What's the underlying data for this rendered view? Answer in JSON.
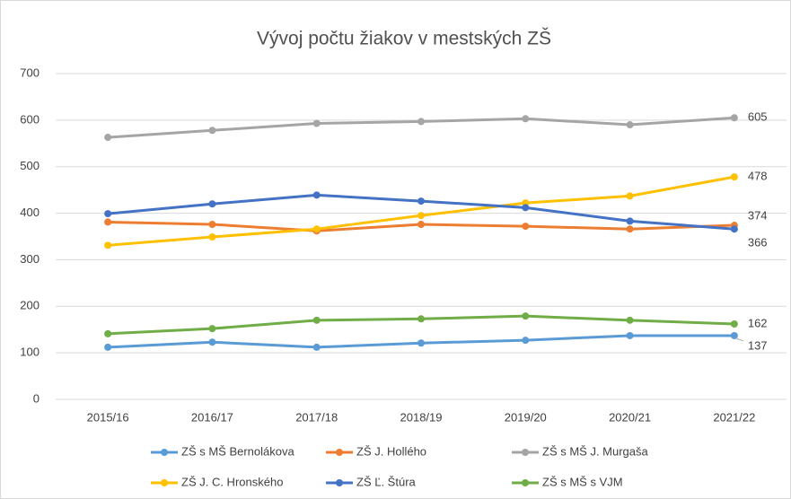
{
  "chart_data": {
    "type": "line",
    "title": "Vývoj počtu žiakov v mestských ZŠ",
    "categories": [
      "2015/16",
      "2016/17",
      "2017/18",
      "2018/19",
      "2019/20",
      "2020/21",
      "2021/22"
    ],
    "series": [
      {
        "name": "ZŠ s MŠ Bernolákova",
        "color": "#5b9bd5",
        "values": [
          112,
          123,
          112,
          121,
          127,
          137,
          137
        ]
      },
      {
        "name": "ZŠ J. Hollého",
        "color": "#ed7d31",
        "values": [
          381,
          376,
          362,
          376,
          372,
          366,
          374
        ]
      },
      {
        "name": "ZŠ s MŠ J. Murgaša",
        "color": "#a5a5a5",
        "values": [
          563,
          578,
          593,
          597,
          603,
          590,
          605
        ]
      },
      {
        "name": "ZŠ J. C. Hronského",
        "color": "#ffc000",
        "values": [
          331,
          349,
          366,
          395,
          422,
          437,
          478
        ]
      },
      {
        "name": "ZŠ Ľ. Štúra",
        "color": "#4472c4",
        "values": [
          399,
          420,
          439,
          426,
          412,
          383,
          366
        ]
      },
      {
        "name": "ZŠ s MŠ s VJM",
        "color": "#70ad47",
        "values": [
          141,
          152,
          170,
          173,
          179,
          170,
          162
        ]
      }
    ],
    "ylim": [
      0,
      700
    ],
    "yticks": [
      0,
      100,
      200,
      300,
      400,
      500,
      600,
      700
    ],
    "grid": true,
    "legend": "bottom"
  }
}
